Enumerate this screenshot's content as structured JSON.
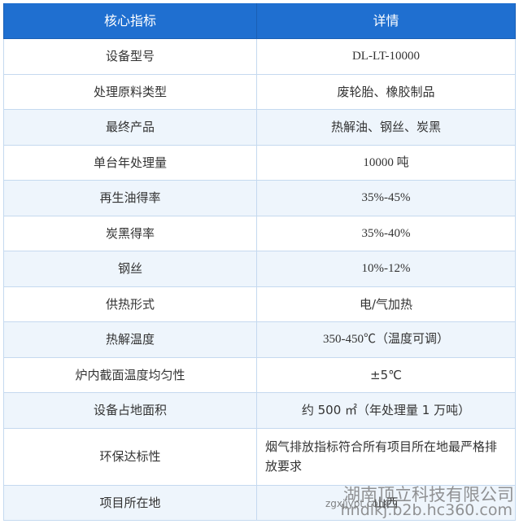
{
  "table": {
    "header": [
      "核心指标",
      "详情"
    ],
    "rows": [
      [
        "设备型号",
        "DL-LT-10000"
      ],
      [
        "处理原料类型",
        "废轮胎、橡胶制品"
      ],
      [
        "最终产品",
        "热解油、钢丝、炭黑"
      ],
      [
        "单台年处理量",
        "10000 吨"
      ],
      [
        "再生油得率",
        "35%-45%"
      ],
      [
        "炭黑得率",
        "35%-40%"
      ],
      [
        "钢丝",
        "10%-12%"
      ],
      [
        "供热形式",
        "电/气加热"
      ],
      [
        "热解温度",
        "350-450℃（温度可调）"
      ],
      [
        "炉内截面温度均匀性",
        "±5℃"
      ],
      [
        "设备占地面积",
        "约 500 ㎡（年处理量 1 万吨）"
      ],
      [
        "环保达标性",
        "烟气排放指标符合所有项目所在地最严格排放要求"
      ],
      [
        "项目所在地",
        "山西"
      ]
    ]
  },
  "watermark": {
    "company": "湖南顶立科技有限公司",
    "site": "hndlkj.b2b.hc360.com",
    "small": "zgxjjypt.com"
  }
}
